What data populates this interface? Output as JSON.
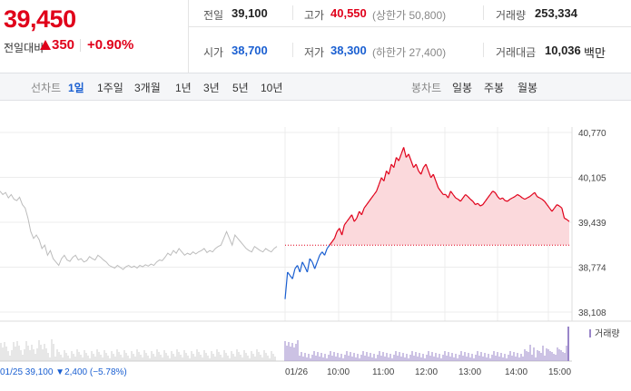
{
  "header": {
    "price": "39,450",
    "change_label": "전일대비",
    "change_value": "350",
    "change_pct": "+0.90%",
    "stats": {
      "prev_label": "전일",
      "prev_value": "39,100",
      "high_label": "고가",
      "high_value": "40,550",
      "high_limit": "(상한가 50,800)",
      "volume_label": "거래량",
      "volume_value": "253,334",
      "open_label": "시가",
      "open_value": "38,700",
      "low_label": "저가",
      "low_value": "38,300",
      "low_limit": "(하한가 27,400)",
      "amount_label": "거래대금",
      "amount_value": "10,036",
      "amount_unit": "백만"
    }
  },
  "tabs": {
    "line_label": "선차트",
    "periods": [
      "1일",
      "1주일",
      "3개월",
      "1년",
      "3년",
      "5년",
      "10년"
    ],
    "active_period": "1일",
    "candle_label": "봉차트",
    "candles": [
      "일봉",
      "주봉",
      "월봉"
    ]
  },
  "chart_data": {
    "type": "line",
    "y_ticks": [
      "40,770",
      "40,105",
      "39,439",
      "38,774",
      "38,108"
    ],
    "ylim": [
      38108,
      40770
    ],
    "x_ticks": [
      "01/26",
      "10:00",
      "11:00",
      "12:00",
      "13:00",
      "14:00",
      "15:00"
    ],
    "prev_date_label": "01/25",
    "prev_close": 39100,
    "volume_label": "거래량",
    "footer": "01/25  39,100 ▼2,400 (−5.78%)",
    "colors": {
      "up": "#e0001a",
      "down": "#1a5fd1",
      "prev": "#bcbcbc",
      "fill": "#fbd9dc",
      "volume": "#9a86c9"
    },
    "series": [
      {
        "name": "",
        "role": "previous",
        "values": [
          39900,
          39850,
          39880,
          39800,
          39850,
          39780,
          39760,
          39810,
          39700,
          39650,
          39500,
          39300,
          39200,
          39250,
          39180,
          39050,
          39100,
          38950,
          39020,
          38900,
          38850,
          38800,
          38900,
          38950,
          38880,
          38860,
          38920,
          38950,
          38880,
          38900,
          38850,
          38870,
          38930,
          38900,
          38880,
          38950,
          38920,
          38880,
          38850,
          38800,
          38780,
          38760,
          38800,
          38770,
          38740,
          38780,
          38800,
          38770,
          38790,
          38760,
          38800,
          38780,
          38810,
          38790,
          38820,
          38800,
          38850,
          38880,
          38870,
          38920,
          38980,
          38950,
          39020,
          38980,
          39050,
          39000,
          38950,
          38980,
          38960,
          39000,
          38970,
          39000,
          39020,
          39050,
          38990,
          39020,
          39000,
          39050,
          39080,
          39100,
          39200,
          39300,
          39200,
          39100,
          39250,
          39200,
          39150,
          39100,
          39050,
          39020,
          39000,
          39080,
          39050,
          39020,
          39000,
          39050,
          39020,
          39000,
          39050,
          39080
        ]
      },
      {
        "name": "",
        "role": "intraday",
        "values": [
          38300,
          38700,
          38650,
          38600,
          38750,
          38800,
          38700,
          38850,
          38780,
          38700,
          38900,
          38850,
          38750,
          38850,
          38950,
          39000,
          38950,
          39050,
          39100,
          39150,
          39200,
          39300,
          39350,
          39250,
          39400,
          39450,
          39500,
          39550,
          39450,
          39500,
          39600,
          39550,
          39650,
          39700,
          39750,
          39800,
          39850,
          39900,
          40000,
          40100,
          40050,
          40200,
          40150,
          40300,
          40250,
          40400,
          40350,
          40450,
          40550,
          40400,
          40450,
          40350,
          40250,
          40300,
          40200,
          40150,
          40250,
          40300,
          40200,
          40100,
          40150,
          40050,
          39950,
          39900,
          39850,
          39850,
          39800,
          39900,
          39850,
          39800,
          39780,
          39750,
          39800,
          39850,
          39820,
          39780,
          39750,
          39700,
          39720,
          39680,
          39700,
          39750,
          39800,
          39850,
          39900,
          39880,
          39820,
          39780,
          39800,
          39760,
          39750,
          39780,
          39800,
          39820,
          39850,
          39830,
          39800,
          39780,
          39800,
          39820,
          39850,
          39880,
          39820,
          39800,
          39780,
          39750,
          39700,
          39650,
          39600,
          39650,
          39700,
          39680,
          39650,
          39500,
          39480,
          39450
        ]
      }
    ]
  }
}
